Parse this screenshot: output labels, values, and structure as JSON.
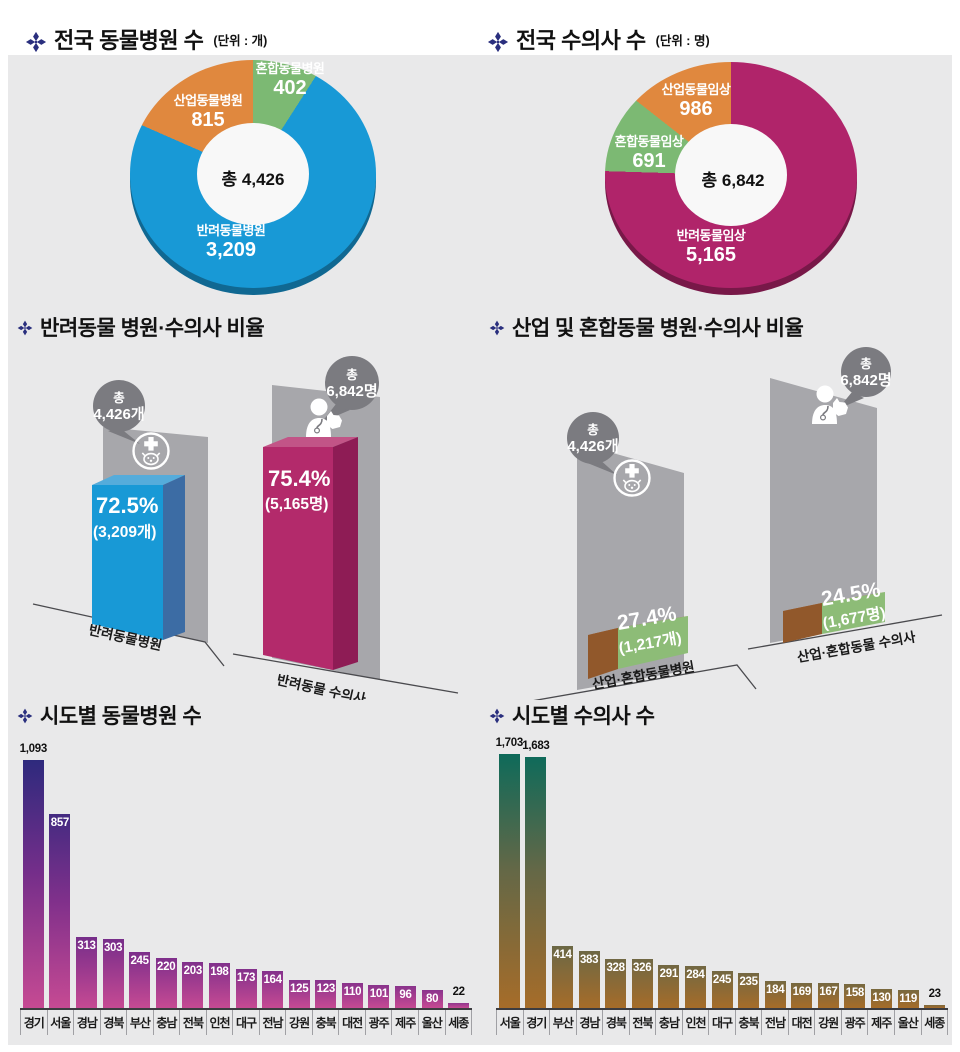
{
  "sections": {
    "s1": {
      "title": "전국 동물병원 수",
      "unit": "(단위 : 개)"
    },
    "s2": {
      "title": "전국 수의사 수",
      "unit": "(단위 : 명)"
    },
    "s3": {
      "title": "반려동물 병원·수의사 비율"
    },
    "s4": {
      "title": "산업 및 혼합동물 병원·수의사 비율"
    },
    "s5": {
      "title": "시도별 동물병원 수"
    },
    "s6": {
      "title": "시도별 수의사 수"
    }
  },
  "colors": {
    "blue": "#1899d6",
    "magenta": "#b0246a",
    "orange": "#e0883e",
    "green": "#7cb973",
    "backdrop": "#a7a7ab",
    "bubble": "#7b7b80",
    "panel": "#e9e9ea",
    "title_icon": "#2a2f7e"
  },
  "chart_data": [
    {
      "id": "national_animal_hospitals",
      "type": "pie",
      "title": "전국 동물병원 수",
      "unit": "개",
      "center_label": "총 4,426",
      "total": 4426,
      "slices": [
        {
          "name": "혼합동물병원",
          "value": 402,
          "display": "402",
          "color": "#7cb973"
        },
        {
          "name": "반려동물병원",
          "value": 3209,
          "display": "3,209",
          "color": "#1899d6"
        },
        {
          "name": "산업동물병원",
          "value": 815,
          "display": "815",
          "color": "#e0883e"
        }
      ]
    },
    {
      "id": "national_veterinarians",
      "type": "pie",
      "title": "전국 수의사 수",
      "unit": "명",
      "center_label": "총 6,842",
      "total": 6842,
      "slices": [
        {
          "name": "반려동물임상",
          "value": 5165,
          "display": "5,165",
          "color": "#b0246a"
        },
        {
          "name": "혼합동물임상",
          "value": 691,
          "display": "691",
          "color": "#7cb973"
        },
        {
          "name": "산업동물임상",
          "value": 986,
          "display": "986",
          "color": "#e0883e"
        }
      ]
    },
    {
      "id": "pet_ratio",
      "type": "bar",
      "title": "반려동물 병원·수의사 비율",
      "items": [
        {
          "label": "반려동물병원",
          "total_word": "총",
          "total_value": "4,426개",
          "pct": "72.5%",
          "pct_value": 72.5,
          "count": "(3,209개)",
          "color": "#1899d6"
        },
        {
          "label": "반려동물 수의사",
          "total_word": "총",
          "total_value": "6,842명",
          "pct": "75.4%",
          "pct_value": 75.4,
          "count": "(5,165명)",
          "color": "#b32a6b"
        }
      ]
    },
    {
      "id": "industrial_mixed_ratio",
      "type": "bar",
      "title": "산업 및 혼합동물 병원·수의사 비율",
      "items": [
        {
          "label": "산업·혼합동물병원",
          "total_word": "총",
          "total_value": "4,426개",
          "pct": "27.4%",
          "pct_value": 27.4,
          "count": "(1,217개)",
          "color": "#8dbc77"
        },
        {
          "label": "산업·혼합동물 수의사",
          "total_word": "총",
          "total_value": "6,842명",
          "pct": "24.5%",
          "pct_value": 24.5,
          "count": "(1,677명)",
          "color": "#8dbc77"
        }
      ]
    },
    {
      "id": "hospitals_by_region",
      "type": "bar",
      "title": "시도별 동물병원 수",
      "categories": [
        "경기",
        "서울",
        "경남",
        "경북",
        "부산",
        "충남",
        "전북",
        "인천",
        "대구",
        "전남",
        "강원",
        "충북",
        "대전",
        "광주",
        "제주",
        "울산",
        "세종"
      ],
      "values": [
        1093,
        857,
        313,
        303,
        245,
        220,
        203,
        198,
        173,
        164,
        125,
        123,
        110,
        101,
        96,
        80,
        22
      ],
      "displays": [
        "1,093",
        "857",
        "313",
        "303",
        "245",
        "220",
        "203",
        "198",
        "173",
        "164",
        "125",
        "123",
        "110",
        "101",
        "96",
        "80",
        "22"
      ],
      "ylim": [
        0,
        1100
      ],
      "grid": false
    },
    {
      "id": "vets_by_region",
      "type": "bar",
      "title": "시도별 수의사 수",
      "categories": [
        "서울",
        "경기",
        "부산",
        "경남",
        "경북",
        "전북",
        "충남",
        "인천",
        "대구",
        "충북",
        "전남",
        "대전",
        "강원",
        "광주",
        "제주",
        "울산",
        "세종"
      ],
      "values": [
        1703,
        1683,
        414,
        383,
        328,
        326,
        291,
        284,
        245,
        235,
        184,
        169,
        167,
        158,
        130,
        119,
        23
      ],
      "displays": [
        "1,703",
        "1,683",
        "414",
        "383",
        "328",
        "326",
        "291",
        "284",
        "245",
        "235",
        "184",
        "169",
        "167",
        "158",
        "130",
        "119",
        "23"
      ],
      "ylim": [
        0,
        1750
      ],
      "grid": false
    }
  ]
}
